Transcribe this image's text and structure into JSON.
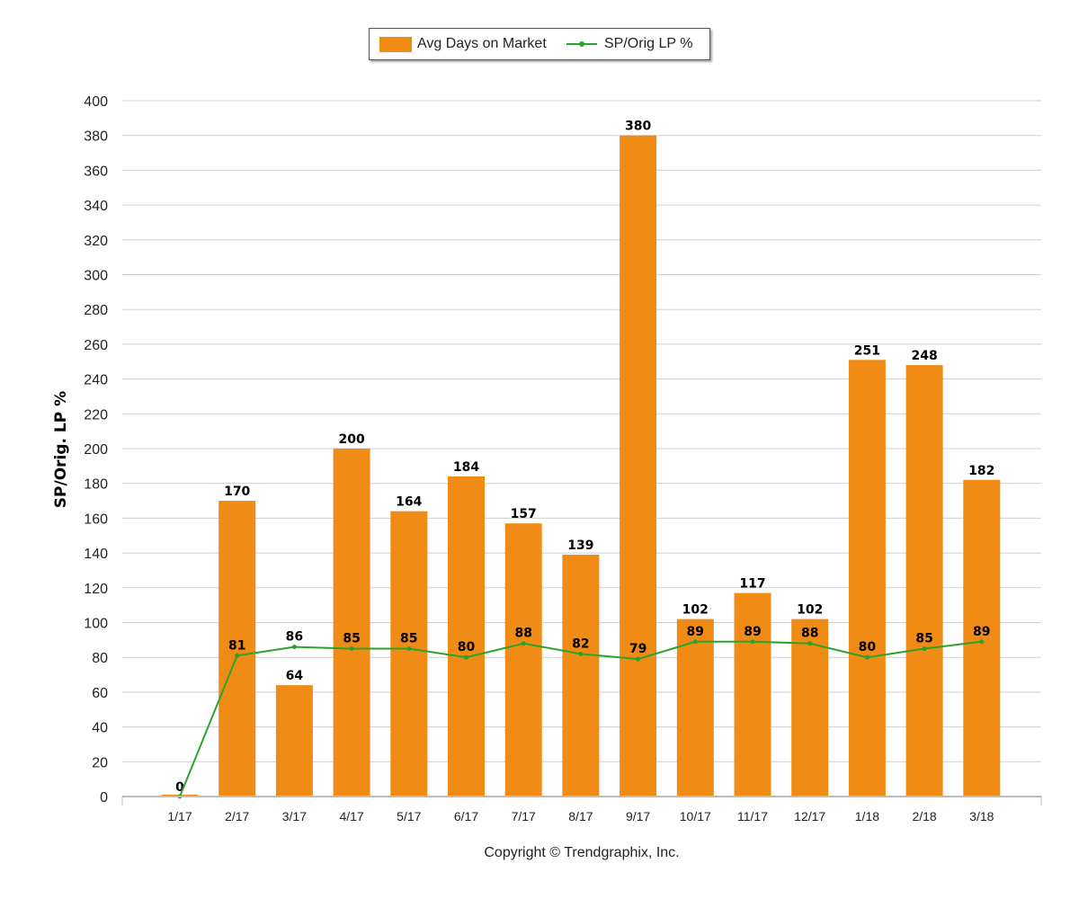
{
  "chart_data": {
    "type": "bar",
    "categories": [
      "1/17",
      "2/17",
      "3/17",
      "4/17",
      "5/17",
      "6/17",
      "7/17",
      "8/17",
      "9/17",
      "10/17",
      "11/17",
      "12/17",
      "1/18",
      "2/18",
      "3/18"
    ],
    "series": [
      {
        "name": "Avg Days on Market",
        "type": "bar",
        "color": "#f08c15",
        "values": [
          0,
          170,
          64,
          200,
          164,
          184,
          157,
          139,
          380,
          102,
          117,
          102,
          251,
          248,
          182
        ]
      },
      {
        "name": "SP/Orig LP %",
        "type": "line",
        "color": "#2aa32a",
        "values": [
          0,
          81,
          86,
          85,
          85,
          80,
          88,
          82,
          79,
          89,
          89,
          88,
          80,
          85,
          89
        ]
      }
    ],
    "ylabel": "SP/Orig. LP %",
    "xlabel": "",
    "ylim": [
      0,
      400
    ],
    "yticks": [
      0,
      20,
      40,
      60,
      80,
      100,
      120,
      140,
      160,
      180,
      200,
      220,
      240,
      260,
      280,
      300,
      320,
      340,
      360,
      380,
      400
    ],
    "grid": true,
    "legend_position": "top"
  },
  "footer": {
    "copyright": "Copyright © Trendgraphix, Inc."
  }
}
